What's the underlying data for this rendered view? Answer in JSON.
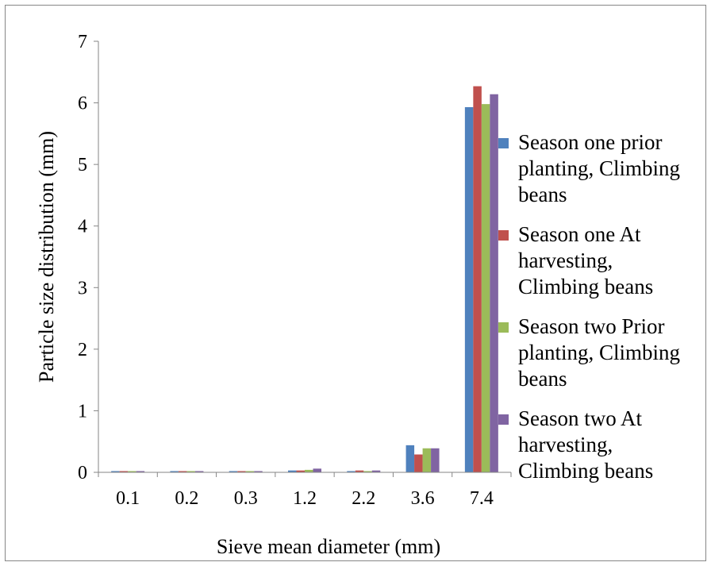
{
  "chart_data": {
    "type": "bar",
    "title": "",
    "xlabel": "Sieve mean diameter (mm)",
    "ylabel": "Particle size distribution (mm)",
    "categories": [
      "0.1",
      "0.2",
      "0.3",
      "1.2",
      "2.2",
      "3.6",
      "7.4"
    ],
    "ylim": [
      0,
      7
    ],
    "yticks": [
      0,
      1,
      2,
      3,
      4,
      5,
      6,
      7
    ],
    "grid": false,
    "legend_position": "right",
    "series": [
      {
        "name": "Season one prior planting, Climbing beans",
        "legend_lines": [
          "Season one prior",
          "planting, Climbing",
          "beans"
        ],
        "color": "#4F81BD",
        "values": [
          0.02,
          0.02,
          0.02,
          0.03,
          0.02,
          0.44,
          5.93
        ]
      },
      {
        "name": "Season one At harvesting, Climbing beans",
        "legend_lines": [
          "Season one At",
          "harvesting,",
          "Climbing beans"
        ],
        "color": "#C0504D",
        "values": [
          0.02,
          0.02,
          0.02,
          0.03,
          0.03,
          0.29,
          6.27
        ]
      },
      {
        "name": "Season two  Prior planting, Climbing beans",
        "legend_lines": [
          "Season two  Prior",
          "planting, Climbing",
          "beans"
        ],
        "color": "#9BBB59",
        "values": [
          0.02,
          0.02,
          0.02,
          0.04,
          0.02,
          0.39,
          5.98
        ]
      },
      {
        "name": "Season two  At harvesting, Climbing beans",
        "legend_lines": [
          "Season two  At",
          "harvesting,",
          "Climbing beans"
        ],
        "color": "#8064A2",
        "values": [
          0.02,
          0.02,
          0.02,
          0.06,
          0.03,
          0.39,
          6.14
        ]
      }
    ]
  }
}
